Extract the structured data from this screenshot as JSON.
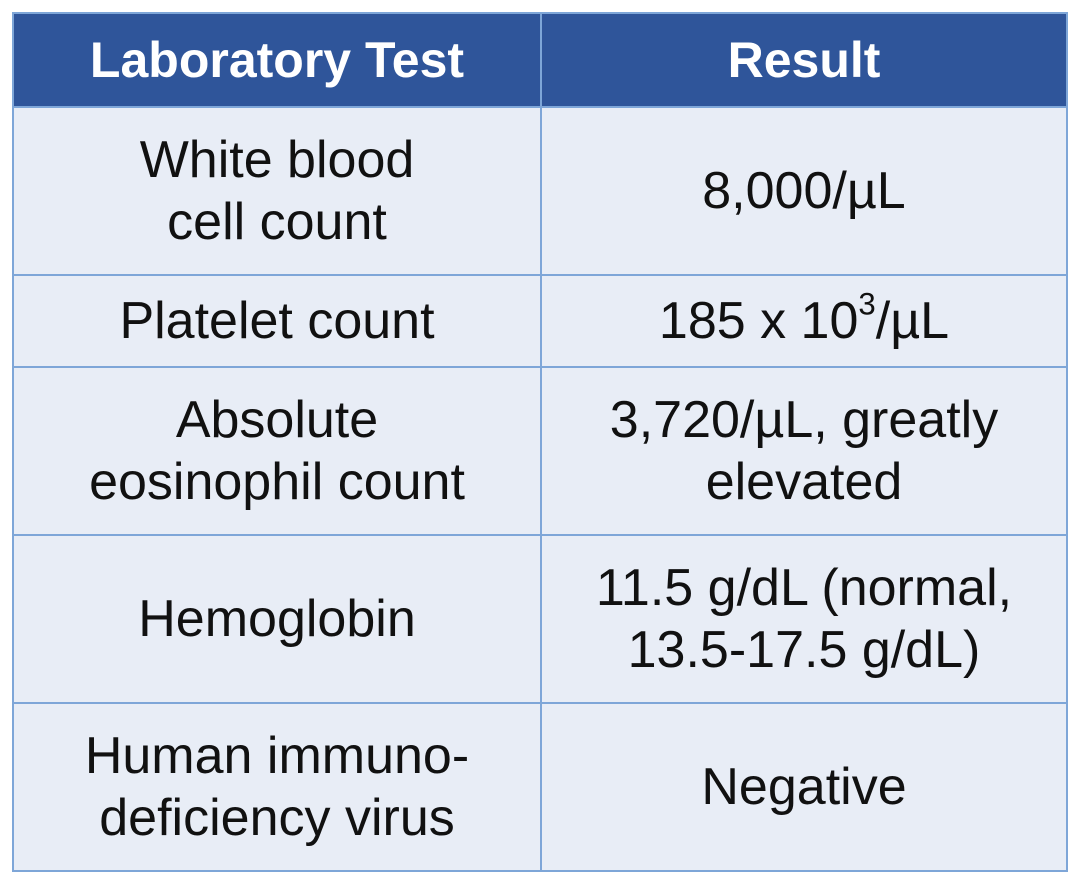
{
  "table": {
    "headers": {
      "test": "Laboratory Test",
      "result": "Result"
    },
    "rows": [
      {
        "test": [
          "White blood",
          "cell count"
        ],
        "result": [
          "8,000/µL"
        ]
      },
      {
        "test": [
          "Platelet count"
        ],
        "result_prefix": "185 x 10",
        "result_sup": "3",
        "result_suffix": "/µL"
      },
      {
        "test": [
          "Absolute",
          "eosinophil count"
        ],
        "result": [
          "3,720/µL, greatly",
          "elevated"
        ]
      },
      {
        "test": [
          "Hemoglobin"
        ],
        "result": [
          "11.5 g/dL (normal,",
          "13.5-17.5 g/dL)"
        ]
      },
      {
        "test": [
          "Human immuno-",
          "deficiency virus"
        ],
        "result": [
          "Negative"
        ]
      }
    ]
  },
  "colors": {
    "header_bg": "#2f559a",
    "header_text": "#ffffff",
    "cell_bg": "#e8edf6",
    "border": "#7ea6d8"
  }
}
